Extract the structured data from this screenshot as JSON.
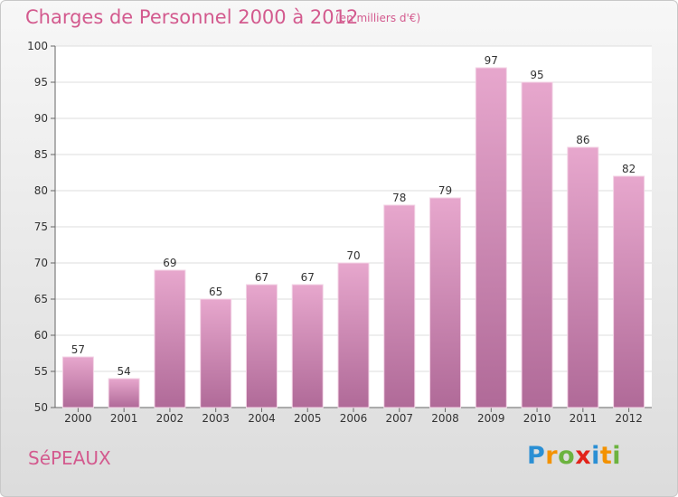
{
  "header": {
    "title": "Charges de Personnel 2000 à 2012",
    "subtitle": "(en milliers d'€)"
  },
  "footer": {
    "commune": "SéPEAUX",
    "logo_letters": [
      "P",
      "r",
      "o",
      "x",
      "i",
      "t",
      "i"
    ],
    "logo_colors": [
      "#2a8fd4",
      "#f39200",
      "#6cb33f",
      "#e2231a",
      "#2a8fd4",
      "#f39200",
      "#6cb33f"
    ]
  },
  "chart_data": {
    "type": "bar",
    "categories": [
      "2000",
      "2001",
      "2002",
      "2003",
      "2004",
      "2005",
      "2006",
      "2007",
      "2008",
      "2009",
      "2010",
      "2011",
      "2012"
    ],
    "values": [
      57,
      54,
      69,
      65,
      67,
      67,
      70,
      78,
      79,
      97,
      95,
      86,
      82
    ],
    "title": "Charges de Personnel 2000 à 2012",
    "ylim": [
      50,
      100
    ],
    "yticks": [
      50,
      55,
      60,
      65,
      70,
      75,
      80,
      85,
      90,
      95,
      100
    ],
    "grid": true,
    "bar_color": "#d77fb0"
  }
}
